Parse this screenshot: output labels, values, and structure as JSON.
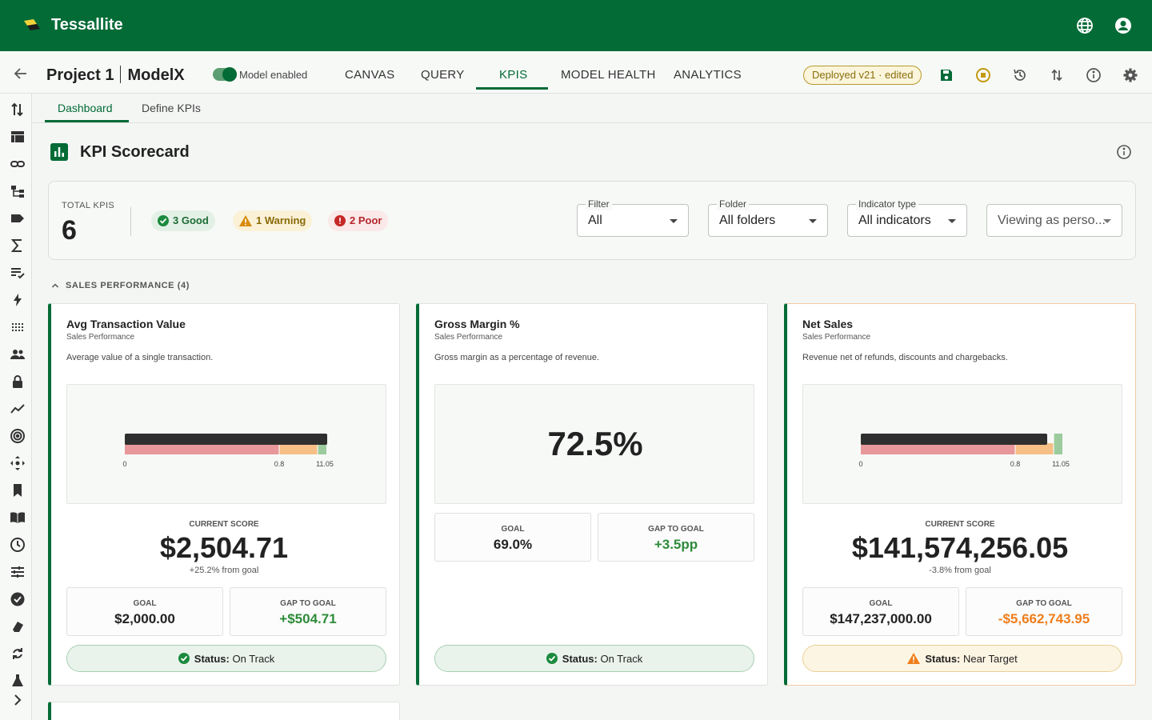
{
  "app": {
    "brand": "Tessallite"
  },
  "project": {
    "name": "Project 1",
    "model": "ModelX",
    "toggle_label": "Model enabled",
    "toggle_on": true
  },
  "nav": {
    "tabs": [
      "CANVAS",
      "QUERY",
      "KPIS",
      "MODEL HEALTH",
      "ANALYTICS"
    ],
    "active": "KPIS"
  },
  "deploy_badge": "Deployed v21 · edited",
  "subtabs": [
    "Dashboard",
    "Define KPIs"
  ],
  "page": {
    "title": "KPI Scorecard"
  },
  "summary": {
    "total_label": "TOTAL KPIS",
    "total_value": "6",
    "chips": {
      "good": "3 Good",
      "warning": "1 Warning",
      "poor": "2 Poor"
    },
    "filter": {
      "legend": "Filter",
      "value": "All"
    },
    "folder": {
      "legend": "Folder",
      "value": "All folders"
    },
    "indicator": {
      "legend": "Indicator type",
      "value": "All indicators"
    },
    "viewing": {
      "value": "Viewing as perso..."
    }
  },
  "section": {
    "title": "SALES PERFORMANCE (4)"
  },
  "labels": {
    "current_score": "CURRENT SCORE",
    "goal": "GOAL",
    "gap_to_goal": "GAP TO GOAL",
    "status_prefix": "Status:"
  },
  "cards": [
    {
      "title": "Avg Transaction Value",
      "category": "Sales Performance",
      "description": "Average value of a single transaction.",
      "bullet": {
        "ticks": [
          "0",
          "0.8",
          "11.05"
        ]
      },
      "current_score": "$2,504.71",
      "from_goal": "+25.2% from goal",
      "goal": "$2,000.00",
      "gap": "+$504.71",
      "status": "On Track"
    },
    {
      "title": "Gross Margin %",
      "category": "Sales Performance",
      "description": "Gross margin as a percentage of revenue.",
      "big_value": "72.5%",
      "goal": "69.0%",
      "gap": "+3.5pp",
      "status": "On Track"
    },
    {
      "title": "Net Sales",
      "category": "Sales Performance",
      "description": "Revenue net of refunds, discounts and chargebacks.",
      "bullet": {
        "ticks": [
          "0",
          "0.8",
          "11.05"
        ]
      },
      "current_score": "$141,574,256.05",
      "from_goal": "-3.8% from goal",
      "goal": "$147,237,000.00",
      "gap": "-$5,662,743.95",
      "status": "Near Target"
    }
  ],
  "colors": {
    "brand": "#036b36",
    "good": "#2e8b3a",
    "warning": "#ef7d1a",
    "poor": "#b3262c"
  }
}
